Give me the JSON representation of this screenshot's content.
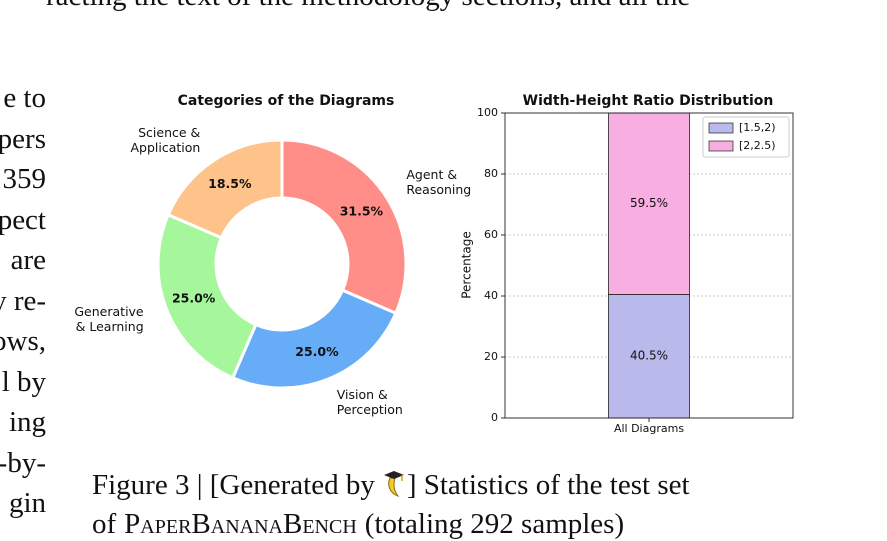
{
  "top_text": "racting the text of the methodology sections, and all the",
  "left_column": [
    "e to",
    "pers",
    "359",
    "pect",
    "are",
    "y re-",
    "ows,",
    "l by",
    "ing",
    "-by-",
    "gin"
  ],
  "chart_data": [
    {
      "type": "donut",
      "title": "Categories of the Diagrams",
      "categories": [
        "Agent &\nReasoning",
        "Vision &\nPerception",
        "Generative\n& Learning",
        "Science &\nApplication"
      ],
      "values": [
        31.5,
        25.0,
        25.0,
        18.5
      ],
      "value_labels": [
        "31.5%",
        "25.0%",
        "25.0%",
        "18.5%"
      ],
      "colors": [
        "#ff8e88",
        "#66acf6",
        "#a6f79c",
        "#fec38b"
      ]
    },
    {
      "type": "stacked_bar",
      "title": "Width-Height Ratio Distribution",
      "y_label": "Percentage",
      "categories": [
        "All Diagrams"
      ],
      "series": [
        {
          "name": "[1.5,2)",
          "color": "#b9b9ec",
          "values": [
            40.5
          ],
          "value_labels": [
            "40.5%"
          ]
        },
        {
          "name": "[2,2.5)",
          "color": "#f9aee1",
          "values": [
            59.5
          ],
          "value_labels": [
            "59.5%"
          ]
        }
      ],
      "ylim": [
        0,
        100
      ],
      "yticks": [
        0,
        20,
        40,
        60,
        80,
        100
      ],
      "grid": true,
      "legend": "upper right"
    }
  ],
  "caption": {
    "line1_start": "Figure 3 | [Generated by",
    "line1_end": "] Statistics of the test set",
    "line2_start": "of",
    "benchmark": "PaperBananaBench",
    "line2_end": "(totaling 292 samples)"
  }
}
